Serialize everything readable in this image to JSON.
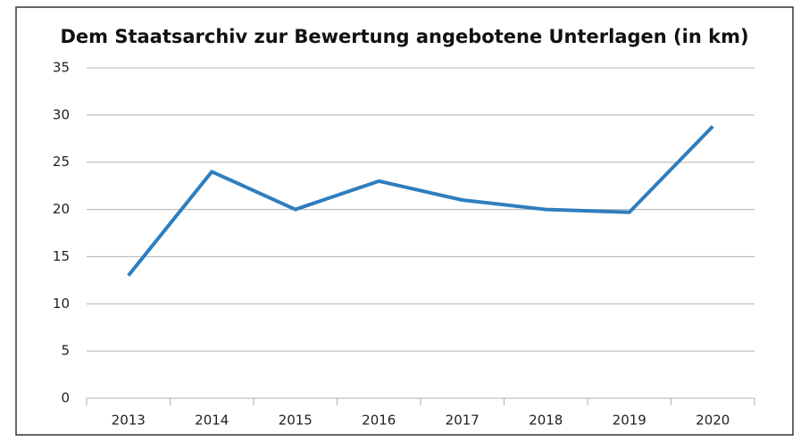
{
  "chart_data": {
    "type": "line",
    "title": "Dem Staatsarchiv zur Bewertung angebotene Unterlagen (in km)",
    "categories": [
      "2013",
      "2014",
      "2015",
      "2016",
      "2017",
      "2018",
      "2019",
      "2020"
    ],
    "values": [
      13,
      24,
      20,
      23,
      21,
      20,
      19.7,
      28.8
    ],
    "color": "#2e7ebf",
    "ylim": [
      0,
      35
    ],
    "yticks": [
      0,
      5,
      10,
      15,
      20,
      25,
      30,
      35
    ],
    "grid": true
  }
}
